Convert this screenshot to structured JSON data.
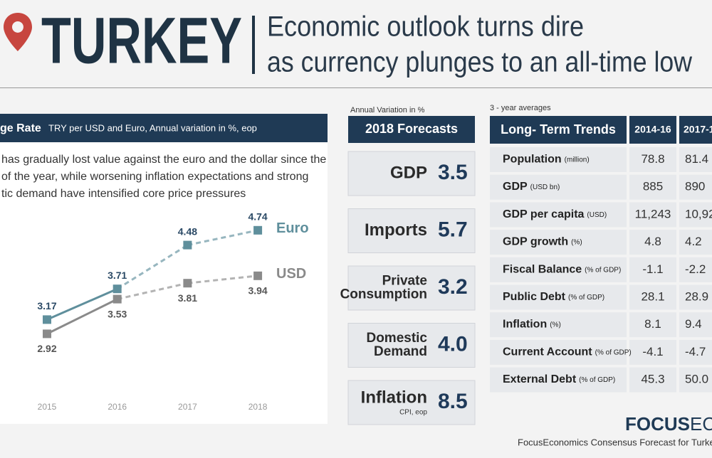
{
  "header": {
    "title": "TURKEY",
    "subtitle": [
      "Economic outlook turns dire",
      "as currency plunges to an all-time low"
    ]
  },
  "chart_data": {
    "type": "line",
    "title": "ge Rate",
    "subtitle": "TRY per USD and Euro, Annual variation in %, eop",
    "description": [
      " has gradually lost value against the euro and the dollar since the",
      "of the year, while worsening inflation expectations and strong",
      "tic demand have intensified core price pressures"
    ],
    "x": [
      "2015",
      "2016",
      "2017",
      "2018"
    ],
    "series": [
      {
        "name": "Euro",
        "color": "#5f8f9c",
        "values": [
          3.17,
          3.71,
          4.48,
          4.74
        ]
      },
      {
        "name": "USD",
        "color": "#8a8a8a",
        "values": [
          2.92,
          3.53,
          3.81,
          3.94
        ]
      }
    ],
    "ylim": [
      1.6,
      5.0
    ]
  },
  "forecasts": {
    "heading": "Annual Variation in %",
    "title": "2018 Forecasts",
    "items": [
      {
        "label": [
          "GDP"
        ],
        "value": 3.5
      },
      {
        "label": [
          "Imports"
        ],
        "value": 5.7
      },
      {
        "label": [
          "Private",
          "Consumption"
        ],
        "value": 3.2
      },
      {
        "label": [
          "Domestic",
          "Demand"
        ],
        "value": "4.0"
      },
      {
        "label": [
          "Inflation"
        ],
        "note": "CPI, eop",
        "value": 8.5
      }
    ]
  },
  "trends": {
    "heading": "3 - year averages",
    "title": "Long- Term Trends",
    "columns": [
      "2014-16",
      "2017-1"
    ],
    "rows": [
      {
        "label": "Population",
        "unit": "(million)",
        "values": [
          78.8,
          81.4
        ]
      },
      {
        "label": "GDP",
        "unit": "(USD bn)",
        "values": [
          885,
          890
        ]
      },
      {
        "label": "GDP per capita",
        "unit": "(USD)",
        "values": [
          "11,243",
          "10,92"
        ]
      },
      {
        "label": "GDP growth",
        "unit": "(%)",
        "values": [
          4.8,
          4.2
        ]
      },
      {
        "label": "Fiscal Balance",
        "unit": "(% of GDP)",
        "values": [
          -1.1,
          -2.2
        ]
      },
      {
        "label": "Public Debt",
        "unit": "(% of GDP)",
        "values": [
          28.1,
          28.9
        ]
      },
      {
        "label": "Inflation",
        "unit": "(%)",
        "values": [
          8.1,
          9.4
        ]
      },
      {
        "label": "Current Account",
        "unit": "(% of GDP)",
        "values": [
          -4.1,
          -4.7
        ]
      },
      {
        "label": "External Debt",
        "unit": "(% of GDP)",
        "values": [
          45.3,
          "50.0"
        ]
      }
    ]
  },
  "footer": {
    "brand_bold": "FOCUS",
    "brand_rest": "ECO",
    "caption": "FocusEconomics Consensus Forecast for Turkey -"
  }
}
